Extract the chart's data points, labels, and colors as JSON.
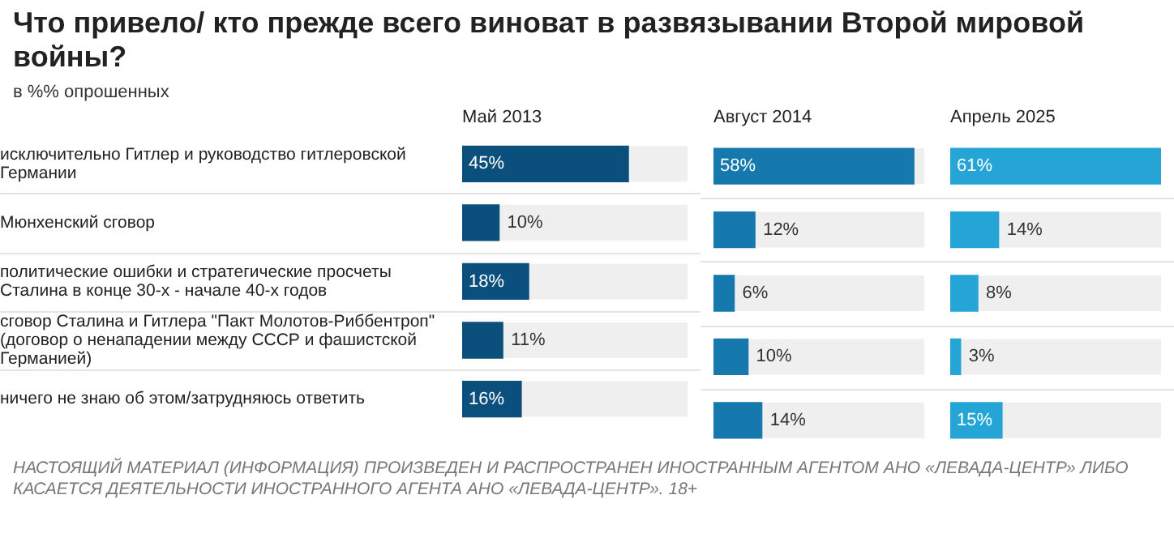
{
  "chart_data": [
    {
      "type": "other",
      "title": "Что привело/ кто прежде всего виноват в развязывании Второй мировой войны?",
      "subtitle": "в %% опрошенных"
    },
    {
      "type": "bar",
      "orientation": "horizontal",
      "title": "Май 2013",
      "categories": [
        "исключительно Гитлер и руководство гитлеровской Германии",
        "Мюнхенский сговор",
        "политические ошибки и стратегические просчеты Сталина в конце 30-х - начале 40-х годов",
        "сговор Сталина и Гитлера \"Пакт Молотов-Риббентроп\" (договор о ненападении между СССР и фашистской Германией)",
        "ничего не знаю об этом/затрудняюсь ответить"
      ],
      "values": [
        45,
        10,
        18,
        11,
        16
      ],
      "value_labels": [
        "45%",
        "10%",
        "18%",
        "11%",
        "16%"
      ],
      "color": "#0b4f7c",
      "tick_labels": "y",
      "grid": "y",
      "annotations": [
        "НАСТОЯЩИЙ МАТЕРИАЛ (ИНФОРМАЦИЯ) ПРОИЗВЕДЕН И РАСПРОСТРАНЕН ИНОСТРАННЫМ АГЕНТОМ АНО «ЛЕВАДА-ЦЕНТР» ЛИБО КАСАЕТСЯ ДЕЯТЕЛЬНОСТИ ИНОСТРАННОГО АГЕНТА АНО «ЛЕВАДА-ЦЕНТР». 18+"
      ]
    },
    {
      "type": "bar",
      "orientation": "horizontal",
      "title": "Август 2014",
      "categories": [
        null,
        null,
        null,
        null,
        null
      ],
      "values": [
        58,
        12,
        6,
        10,
        14
      ],
      "value_labels": [
        "58%",
        "12%",
        "6%",
        "10%",
        "14%"
      ],
      "color": "#1679ad",
      "tick_labels": false,
      "grid": "y"
    },
    {
      "type": "bar",
      "orientation": "horizontal",
      "title": "Апрель 2025",
      "categories": [
        null,
        null,
        null,
        null,
        null
      ],
      "values": [
        61,
        14,
        8,
        3,
        15
      ],
      "value_labels": [
        "61%",
        "14%",
        "8%",
        "3%",
        "15%"
      ],
      "color": "#25a5d6",
      "tick_labels": false,
      "grid": "y"
    }
  ]
}
